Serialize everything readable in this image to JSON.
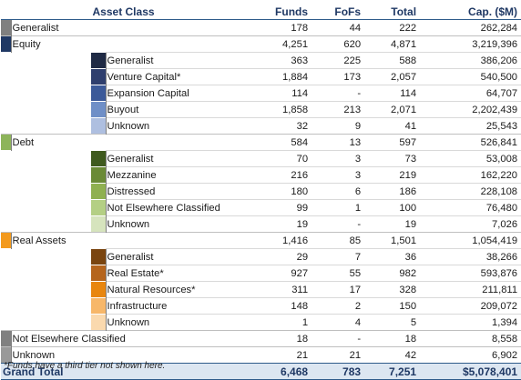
{
  "header": {
    "asset_class": "Asset Class",
    "funds": "Funds",
    "fofs": "FoFs",
    "total": "Total",
    "cap": "Cap. ($M)"
  },
  "rows": [
    {
      "level": 1,
      "name": "Generalist",
      "color": "#808080",
      "funds": "178",
      "fofs": "44",
      "total": "222",
      "cap": "262,284"
    },
    {
      "level": 1,
      "name": "Equity",
      "color": "#1f3864",
      "funds": "4,251",
      "fofs": "620",
      "total": "4,871",
      "cap": "3,219,396"
    },
    {
      "level": 2,
      "name": "Generalist",
      "color": "#1f2a44",
      "funds": "363",
      "fofs": "225",
      "total": "588",
      "cap": "386,206"
    },
    {
      "level": 2,
      "name": "Venture Capital*",
      "color": "#2f3f6e",
      "funds": "1,884",
      "fofs": "173",
      "total": "2,057",
      "cap": "540,500"
    },
    {
      "level": 2,
      "name": "Expansion Capital",
      "color": "#3c5a99",
      "funds": "114",
      "fofs": "-",
      "total": "114",
      "cap": "64,707"
    },
    {
      "level": 2,
      "name": "Buyout",
      "color": "#6f8fc7",
      "funds": "1,858",
      "fofs": "213",
      "total": "2,071",
      "cap": "2,202,439"
    },
    {
      "level": 2,
      "name": "Unknown",
      "color": "#aebfe0",
      "funds": "32",
      "fofs": "9",
      "total": "41",
      "cap": "25,543"
    },
    {
      "level": 1,
      "name": "Debt",
      "color": "#8db45a",
      "funds": "584",
      "fofs": "13",
      "total": "597",
      "cap": "526,841"
    },
    {
      "level": 2,
      "name": "Generalist",
      "color": "#3f5a1e",
      "funds": "70",
      "fofs": "3",
      "total": "73",
      "cap": "53,008"
    },
    {
      "level": 2,
      "name": "Mezzanine",
      "color": "#6a8a36",
      "funds": "216",
      "fofs": "3",
      "total": "219",
      "cap": "162,220"
    },
    {
      "level": 2,
      "name": "Distressed",
      "color": "#8fb050",
      "funds": "180",
      "fofs": "6",
      "total": "186",
      "cap": "228,108"
    },
    {
      "level": 2,
      "name": "Not Elsewhere Classified",
      "color": "#b4cf84",
      "funds": "99",
      "fofs": "1",
      "total": "100",
      "cap": "76,480"
    },
    {
      "level": 2,
      "name": "Unknown",
      "color": "#d6e4bd",
      "funds": "19",
      "fofs": "-",
      "total": "19",
      "cap": "7,026"
    },
    {
      "level": 1,
      "name": "Real Assets",
      "color": "#f39a1e",
      "funds": "1,416",
      "fofs": "85",
      "total": "1,501",
      "cap": "1,054,419"
    },
    {
      "level": 2,
      "name": "Generalist",
      "color": "#7a4510",
      "funds": "29",
      "fofs": "7",
      "total": "36",
      "cap": "38,266"
    },
    {
      "level": 2,
      "name": "Real Estate*",
      "color": "#b5651d",
      "funds": "927",
      "fofs": "55",
      "total": "982",
      "cap": "593,876"
    },
    {
      "level": 2,
      "name": "Natural Resources*",
      "color": "#e8860f",
      "funds": "311",
      "fofs": "17",
      "total": "328",
      "cap": "211,811"
    },
    {
      "level": 2,
      "name": "Infrastructure",
      "color": "#f7b769",
      "funds": "148",
      "fofs": "2",
      "total": "150",
      "cap": "209,072"
    },
    {
      "level": 2,
      "name": "Unknown",
      "color": "#fad9ae",
      "funds": "1",
      "fofs": "4",
      "total": "5",
      "cap": "1,394"
    },
    {
      "level": 1,
      "name": "Not Elsewhere Classified",
      "color": "#808080",
      "funds": "18",
      "fofs": "-",
      "total": "18",
      "cap": "8,558"
    },
    {
      "level": 1,
      "name": "Unknown",
      "color": "#999999",
      "funds": "21",
      "fofs": "21",
      "total": "42",
      "cap": "6,902"
    }
  ],
  "grand_total": {
    "label": "Grand Total",
    "funds": "6,468",
    "fofs": "783",
    "total": "7,251",
    "cap": "$5,078,401"
  },
  "footnote": "*Funds have a third tier not shown here."
}
